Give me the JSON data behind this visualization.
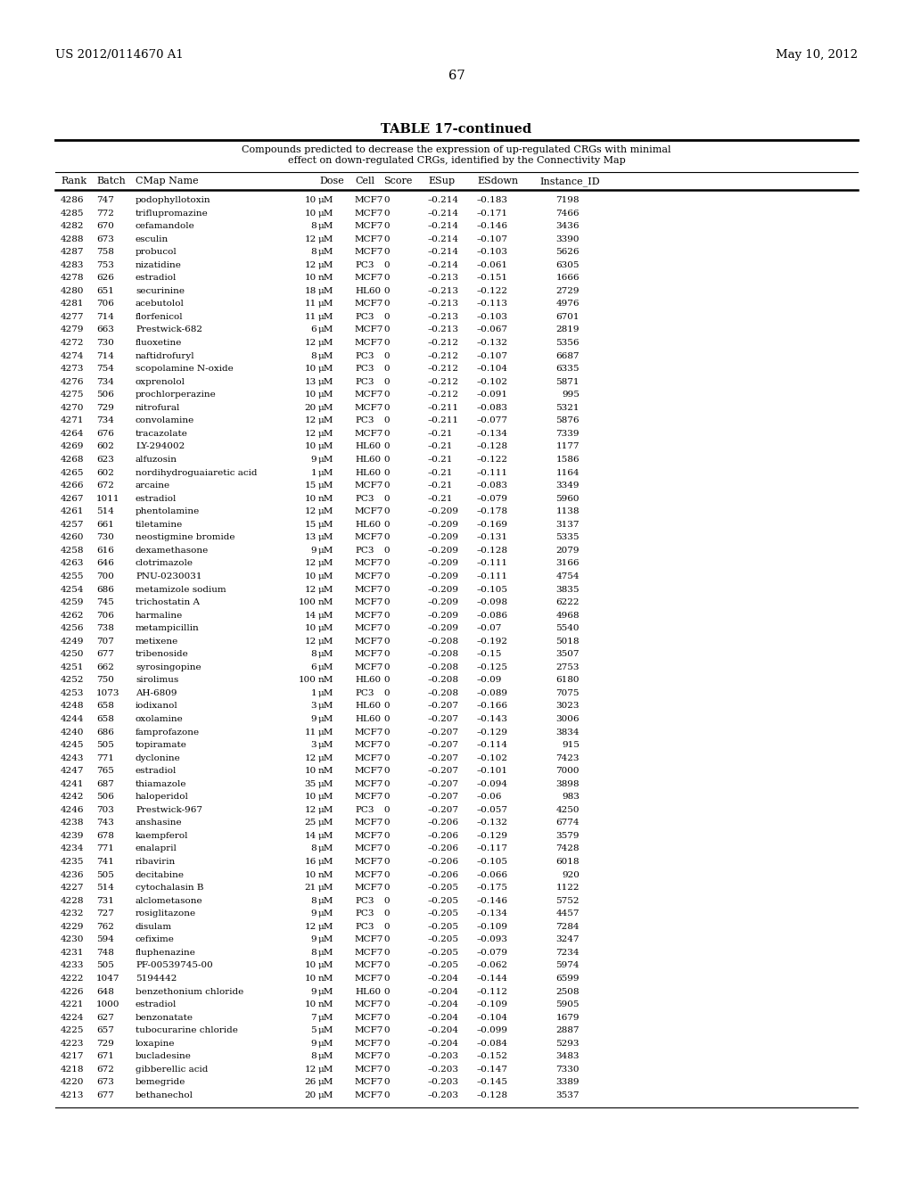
{
  "header_left": "US 2012/0114670 A1",
  "header_right": "May 10, 2012",
  "page_number": "67",
  "table_title": "TABLE 17-continued",
  "table_subtitle_line1": "Compounds predicted to decrease the expression of up-regulated CRGs with minimal",
  "table_subtitle_line2": "effect on down-regulated CRGs, identified by the Connectivity Map",
  "col_headers": [
    "Rank",
    "Batch",
    "CMap Name",
    "Dose",
    "Cell",
    "Score",
    "ESup",
    "ESdown",
    "Instance_ID"
  ],
  "rows": [
    [
      "4286",
      "747",
      "podophyllotoxin",
      "10",
      "μM",
      "MCF7",
      "0",
      "–0.214",
      "–0.183",
      "7198"
    ],
    [
      "4285",
      "772",
      "triflupromazine",
      "10",
      "μM",
      "MCF7",
      "0",
      "–0.214",
      "–0.171",
      "7466"
    ],
    [
      "4282",
      "670",
      "cefamandole",
      "8",
      "μM",
      "MCF7",
      "0",
      "–0.214",
      "–0.146",
      "3436"
    ],
    [
      "4288",
      "673",
      "esculin",
      "12",
      "μM",
      "MCF7",
      "0",
      "–0.214",
      "–0.107",
      "3390"
    ],
    [
      "4287",
      "758",
      "probucol",
      "8",
      "μM",
      "MCF7",
      "0",
      "–0.214",
      "–0.103",
      "5626"
    ],
    [
      "4283",
      "753",
      "nizatidine",
      "12",
      "μM",
      "PC3",
      "0",
      "–0.214",
      "–0.061",
      "6305"
    ],
    [
      "4278",
      "626",
      "estradiol",
      "10",
      "nM",
      "MCF7",
      "0",
      "–0.213",
      "–0.151",
      "1666"
    ],
    [
      "4280",
      "651",
      "securinine",
      "18",
      "μM",
      "HL60",
      "0",
      "–0.213",
      "–0.122",
      "2729"
    ],
    [
      "4281",
      "706",
      "acebutolol",
      "11",
      "μM",
      "MCF7",
      "0",
      "–0.213",
      "–0.113",
      "4976"
    ],
    [
      "4277",
      "714",
      "florfenicol",
      "11",
      "μM",
      "PC3",
      "0",
      "–0.213",
      "–0.103",
      "6701"
    ],
    [
      "4279",
      "663",
      "Prestwick-682",
      "6",
      "μM",
      "MCF7",
      "0",
      "–0.213",
      "–0.067",
      "2819"
    ],
    [
      "4272",
      "730",
      "fluoxetine",
      "12",
      "μM",
      "MCF7",
      "0",
      "–0.212",
      "–0.132",
      "5356"
    ],
    [
      "4274",
      "714",
      "naftidrofuryl",
      "8",
      "μM",
      "PC3",
      "0",
      "–0.212",
      "–0.107",
      "6687"
    ],
    [
      "4273",
      "754",
      "scopolamine N-oxide",
      "10",
      "μM",
      "PC3",
      "0",
      "–0.212",
      "–0.104",
      "6335"
    ],
    [
      "4276",
      "734",
      "oxprenolol",
      "13",
      "μM",
      "PC3",
      "0",
      "–0.212",
      "–0.102",
      "5871"
    ],
    [
      "4275",
      "506",
      "prochlorperazine",
      "10",
      "μM",
      "MCF7",
      "0",
      "–0.212",
      "–0.091",
      "995"
    ],
    [
      "4270",
      "729",
      "nitrofural",
      "20",
      "μM",
      "MCF7",
      "0",
      "–0.211",
      "–0.083",
      "5321"
    ],
    [
      "4271",
      "734",
      "convolamine",
      "12",
      "μM",
      "PC3",
      "0",
      "–0.211",
      "–0.077",
      "5876"
    ],
    [
      "4264",
      "676",
      "tracazolate",
      "12",
      "μM",
      "MCF7",
      "0",
      "–0.21",
      "–0.134",
      "7339"
    ],
    [
      "4269",
      "602",
      "LY-294002",
      "10",
      "μM",
      "HL60",
      "0",
      "–0.21",
      "–0.128",
      "1177"
    ],
    [
      "4268",
      "623",
      "alfuzosin",
      "9",
      "μM",
      "HL60",
      "0",
      "–0.21",
      "–0.122",
      "1586"
    ],
    [
      "4265",
      "602",
      "nordihydroguaiaretic acid",
      "1",
      "μM",
      "HL60",
      "0",
      "–0.21",
      "–0.111",
      "1164"
    ],
    [
      "4266",
      "672",
      "arcaine",
      "15",
      "μM",
      "MCF7",
      "0",
      "–0.21",
      "–0.083",
      "3349"
    ],
    [
      "4267",
      "1011",
      "estradiol",
      "10",
      "nM",
      "PC3",
      "0",
      "–0.21",
      "–0.079",
      "5960"
    ],
    [
      "4261",
      "514",
      "phentolamine",
      "12",
      "μM",
      "MCF7",
      "0",
      "–0.209",
      "–0.178",
      "1138"
    ],
    [
      "4257",
      "661",
      "tiletamine",
      "15",
      "μM",
      "HL60",
      "0",
      "–0.209",
      "–0.169",
      "3137"
    ],
    [
      "4260",
      "730",
      "neostigmine bromide",
      "13",
      "μM",
      "MCF7",
      "0",
      "–0.209",
      "–0.131",
      "5335"
    ],
    [
      "4258",
      "616",
      "dexamethasone",
      "9",
      "μM",
      "PC3",
      "0",
      "–0.209",
      "–0.128",
      "2079"
    ],
    [
      "4263",
      "646",
      "clotrimazole",
      "12",
      "μM",
      "MCF7",
      "0",
      "–0.209",
      "–0.111",
      "3166"
    ],
    [
      "4255",
      "700",
      "PNU-0230031",
      "10",
      "μM",
      "MCF7",
      "0",
      "–0.209",
      "–0.111",
      "4754"
    ],
    [
      "4254",
      "686",
      "metamizole sodium",
      "12",
      "μM",
      "MCF7",
      "0",
      "–0.209",
      "–0.105",
      "3835"
    ],
    [
      "4259",
      "745",
      "trichostatin A",
      "100",
      "nM",
      "MCF7",
      "0",
      "–0.209",
      "–0.098",
      "6222"
    ],
    [
      "4262",
      "706",
      "harmaline",
      "14",
      "μM",
      "MCF7",
      "0",
      "–0.209",
      "–0.086",
      "4968"
    ],
    [
      "4256",
      "738",
      "metampicillin",
      "10",
      "μM",
      "MCF7",
      "0",
      "–0.209",
      "–0.07",
      "5540"
    ],
    [
      "4249",
      "707",
      "metixene",
      "12",
      "μM",
      "MCF7",
      "0",
      "–0.208",
      "–0.192",
      "5018"
    ],
    [
      "4250",
      "677",
      "tribenoside",
      "8",
      "μM",
      "MCF7",
      "0",
      "–0.208",
      "–0.15",
      "3507"
    ],
    [
      "4251",
      "662",
      "syrosingopine",
      "6",
      "μM",
      "MCF7",
      "0",
      "–0.208",
      "–0.125",
      "2753"
    ],
    [
      "4252",
      "750",
      "sirolimus",
      "100",
      "nM",
      "HL60",
      "0",
      "–0.208",
      "–0.09",
      "6180"
    ],
    [
      "4253",
      "1073",
      "AH-6809",
      "1",
      "μM",
      "PC3",
      "0",
      "–0.208",
      "–0.089",
      "7075"
    ],
    [
      "4248",
      "658",
      "iodixanol",
      "3",
      "μM",
      "HL60",
      "0",
      "–0.207",
      "–0.166",
      "3023"
    ],
    [
      "4244",
      "658",
      "oxolamine",
      "9",
      "μM",
      "HL60",
      "0",
      "–0.207",
      "–0.143",
      "3006"
    ],
    [
      "4240",
      "686",
      "famprofazone",
      "11",
      "μM",
      "MCF7",
      "0",
      "–0.207",
      "–0.129",
      "3834"
    ],
    [
      "4245",
      "505",
      "topiramate",
      "3",
      "μM",
      "MCF7",
      "0",
      "–0.207",
      "–0.114",
      "915"
    ],
    [
      "4243",
      "771",
      "dyclonine",
      "12",
      "μM",
      "MCF7",
      "0",
      "–0.207",
      "–0.102",
      "7423"
    ],
    [
      "4247",
      "765",
      "estradiol",
      "10",
      "nM",
      "MCF7",
      "0",
      "–0.207",
      "–0.101",
      "7000"
    ],
    [
      "4241",
      "687",
      "thiamazole",
      "35",
      "μM",
      "MCF7",
      "0",
      "–0.207",
      "–0.094",
      "3898"
    ],
    [
      "4242",
      "506",
      "haloperidol",
      "10",
      "μM",
      "MCF7",
      "0",
      "–0.207",
      "–0.06",
      "983"
    ],
    [
      "4246",
      "703",
      "Prestwick-967",
      "12",
      "μM",
      "PC3",
      "0",
      "–0.207",
      "–0.057",
      "4250"
    ],
    [
      "4238",
      "743",
      "anshasine",
      "25",
      "μM",
      "MCF7",
      "0",
      "–0.206",
      "–0.132",
      "6774"
    ],
    [
      "4239",
      "678",
      "kaempferol",
      "14",
      "μM",
      "MCF7",
      "0",
      "–0.206",
      "–0.129",
      "3579"
    ],
    [
      "4234",
      "771",
      "enalapril",
      "8",
      "μM",
      "MCF7",
      "0",
      "–0.206",
      "–0.117",
      "7428"
    ],
    [
      "4235",
      "741",
      "ribavirin",
      "16",
      "μM",
      "MCF7",
      "0",
      "–0.206",
      "–0.105",
      "6018"
    ],
    [
      "4236",
      "505",
      "decitabine",
      "10",
      "nM",
      "MCF7",
      "0",
      "–0.206",
      "–0.066",
      "920"
    ],
    [
      "4227",
      "514",
      "cytochalasin B",
      "21",
      "μM",
      "MCF7",
      "0",
      "–0.205",
      "–0.175",
      "1122"
    ],
    [
      "4228",
      "731",
      "alclometasone",
      "8",
      "μM",
      "PC3",
      "0",
      "–0.205",
      "–0.146",
      "5752"
    ],
    [
      "4232",
      "727",
      "rosiglitazone",
      "9",
      "μM",
      "PC3",
      "0",
      "–0.205",
      "–0.134",
      "4457"
    ],
    [
      "4229",
      "762",
      "disulam",
      "12",
      "μM",
      "PC3",
      "0",
      "–0.205",
      "–0.109",
      "7284"
    ],
    [
      "4230",
      "594",
      "cefixime",
      "9",
      "μM",
      "MCF7",
      "0",
      "–0.205",
      "–0.093",
      "3247"
    ],
    [
      "4231",
      "748",
      "fluphenazine",
      "8",
      "μM",
      "MCF7",
      "0",
      "–0.205",
      "–0.079",
      "7234"
    ],
    [
      "4233",
      "505",
      "PF-00539745-00",
      "10",
      "μM",
      "MCF7",
      "0",
      "–0.205",
      "–0.062",
      "5974"
    ],
    [
      "4222",
      "1047",
      "5194442",
      "10",
      "nM",
      "MCF7",
      "0",
      "–0.204",
      "–0.144",
      "6599"
    ],
    [
      "4226",
      "648",
      "benzethonium chloride",
      "9",
      "μM",
      "HL60",
      "0",
      "–0.204",
      "–0.112",
      "2508"
    ],
    [
      "4221",
      "1000",
      "estradiol",
      "10",
      "nM",
      "MCF7",
      "0",
      "–0.204",
      "–0.109",
      "5905"
    ],
    [
      "4224",
      "627",
      "benzonatate",
      "7",
      "μM",
      "MCF7",
      "0",
      "–0.204",
      "–0.104",
      "1679"
    ],
    [
      "4225",
      "657",
      "tubocurarine chloride",
      "5",
      "μM",
      "MCF7",
      "0",
      "–0.204",
      "–0.099",
      "2887"
    ],
    [
      "4223",
      "729",
      "loxapine",
      "9",
      "μM",
      "MCF7",
      "0",
      "–0.204",
      "–0.084",
      "5293"
    ],
    [
      "4217",
      "671",
      "bucladesine",
      "8",
      "μM",
      "MCF7",
      "0",
      "–0.203",
      "–0.152",
      "3483"
    ],
    [
      "4218",
      "672",
      "gibberellic acid",
      "12",
      "μM",
      "MCF7",
      "0",
      "–0.203",
      "–0.147",
      "7330"
    ],
    [
      "4220",
      "673",
      "bemegride",
      "26",
      "μM",
      "MCF7",
      "0",
      "–0.203",
      "–0.145",
      "3389"
    ],
    [
      "4213",
      "677",
      "bethanechol",
      "20",
      "μM",
      "MCF7",
      "0",
      "–0.203",
      "–0.128",
      "3537"
    ]
  ]
}
